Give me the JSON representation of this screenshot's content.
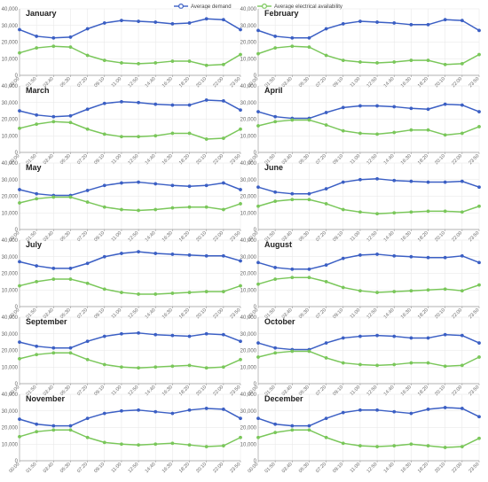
{
  "colors": {
    "demand": "#3b5fc4",
    "availability": "#7ac75a",
    "grid": "#e6e6e6",
    "axis": "#9a9a9a"
  },
  "legend": {
    "position": "top-center",
    "demand_label": "Average demand",
    "availability_label": "Average electrical availability"
  },
  "chart_data": [
    {
      "type": "line",
      "title": "January",
      "x": [
        "00:00",
        "01:50",
        "03:40",
        "05:30",
        "07:20",
        "09:10",
        "11:00",
        "12:50",
        "14:40",
        "16:30",
        "18:20",
        "20:10",
        "22:00",
        "23:50"
      ],
      "ylim": [
        0,
        40000
      ],
      "yticks": [
        "0",
        "10,000",
        "20,000",
        "30,000",
        "40,000"
      ],
      "series": [
        {
          "name": "Average demand",
          "values": [
            27500,
            23500,
            22500,
            23000,
            28000,
            31500,
            33000,
            32500,
            32000,
            31000,
            31500,
            34000,
            33500,
            27500
          ]
        },
        {
          "name": "Average electrical availability",
          "values": [
            13500,
            16500,
            17500,
            17000,
            12000,
            9000,
            7500,
            7000,
            7500,
            8500,
            8500,
            6000,
            6500,
            12500
          ]
        }
      ]
    },
    {
      "type": "line",
      "title": "February",
      "x": [
        "00:00",
        "01:50",
        "03:40",
        "05:30",
        "07:20",
        "09:10",
        "11:00",
        "12:50",
        "14:40",
        "16:30",
        "18:20",
        "20:10",
        "22:00",
        "23:50"
      ],
      "ylim": [
        0,
        40000
      ],
      "yticks": [
        "0",
        "10,000",
        "20,000",
        "30,000",
        "40,000"
      ],
      "series": [
        {
          "name": "Average demand",
          "values": [
            27000,
            23500,
            22500,
            22500,
            28000,
            31000,
            32500,
            32000,
            31500,
            30500,
            30500,
            33500,
            33000,
            27000
          ]
        },
        {
          "name": "Average electrical availability",
          "values": [
            13000,
            16500,
            17500,
            17000,
            12000,
            9000,
            8000,
            7500,
            8000,
            9000,
            9000,
            6500,
            7000,
            12500
          ]
        }
      ]
    },
    {
      "type": "line",
      "title": "March",
      "x": [
        "00:00",
        "01:50",
        "03:40",
        "05:30",
        "07:20",
        "09:10",
        "11:00",
        "12:50",
        "14:40",
        "16:30",
        "18:20",
        "20:10",
        "22:00",
        "23:50"
      ],
      "ylim": [
        0,
        40000
      ],
      "yticks": [
        "0",
        "10,000",
        "20,000",
        "30,000",
        "40,000"
      ],
      "series": [
        {
          "name": "Average demand",
          "values": [
            25000,
            22500,
            21500,
            22000,
            26000,
            29500,
            30500,
            30000,
            29000,
            28500,
            28500,
            31500,
            31000,
            25500
          ]
        },
        {
          "name": "Average electrical availability",
          "values": [
            14500,
            17000,
            18500,
            18000,
            14000,
            11000,
            9500,
            9500,
            10000,
            11500,
            11500,
            8000,
            8500,
            14000
          ]
        }
      ]
    },
    {
      "type": "line",
      "title": "April",
      "x": [
        "00:00",
        "01:50",
        "03:40",
        "05:30",
        "07:20",
        "09:10",
        "11:00",
        "12:50",
        "14:40",
        "16:30",
        "18:20",
        "20:10",
        "22:00",
        "23:50"
      ],
      "ylim": [
        0,
        40000
      ],
      "yticks": [
        "0",
        "10,000",
        "20,000",
        "30,000",
        "40,000"
      ],
      "series": [
        {
          "name": "Average demand",
          "values": [
            24500,
            21500,
            20500,
            20500,
            24000,
            27000,
            28000,
            28000,
            27500,
            26500,
            26000,
            29000,
            28500,
            24500
          ]
        },
        {
          "name": "Average electrical availability",
          "values": [
            16000,
            18500,
            19500,
            19500,
            16500,
            13000,
            11500,
            11000,
            12000,
            13500,
            13500,
            10500,
            11500,
            15500
          ]
        }
      ]
    },
    {
      "type": "line",
      "title": "May",
      "x": [
        "00:00",
        "01:50",
        "03:40",
        "05:30",
        "07:20",
        "09:10",
        "11:00",
        "12:50",
        "14:40",
        "16:30",
        "18:20",
        "20:10",
        "22:00",
        "23:50"
      ],
      "ylim": [
        0,
        40000
      ],
      "yticks": [
        "0",
        "10,000",
        "20,000",
        "30,000",
        "40,000"
      ],
      "series": [
        {
          "name": "Average demand",
          "values": [
            24000,
            21500,
            20500,
            20500,
            23500,
            26500,
            28000,
            28500,
            27500,
            26500,
            26000,
            26500,
            28000,
            24000
          ]
        },
        {
          "name": "Average electrical availability",
          "values": [
            16000,
            18500,
            19500,
            19500,
            16500,
            13500,
            12000,
            11500,
            12000,
            13000,
            13500,
            13500,
            12000,
            15500
          ]
        }
      ]
    },
    {
      "type": "line",
      "title": "June",
      "x": [
        "00:00",
        "01:50",
        "03:40",
        "05:30",
        "07:20",
        "09:10",
        "11:00",
        "12:50",
        "14:40",
        "16:30",
        "18:20",
        "20:10",
        "22:00",
        "23:50"
      ],
      "ylim": [
        0,
        40000
      ],
      "yticks": [
        "0",
        "10,000",
        "20,000",
        "30,000",
        "40,000"
      ],
      "series": [
        {
          "name": "Average demand",
          "values": [
            25500,
            22500,
            21500,
            21500,
            24500,
            28500,
            30000,
            30500,
            29500,
            29000,
            28500,
            28500,
            29000,
            25500
          ]
        },
        {
          "name": "Average electrical availability",
          "values": [
            14000,
            17000,
            18000,
            18000,
            15500,
            12000,
            10500,
            9500,
            10000,
            10500,
            11000,
            11000,
            10500,
            14000
          ]
        }
      ]
    },
    {
      "type": "line",
      "title": "July",
      "x": [
        "00:00",
        "01:50",
        "03:40",
        "05:30",
        "07:20",
        "09:10",
        "11:00",
        "12:50",
        "14:40",
        "16:30",
        "18:20",
        "20:10",
        "22:00",
        "23:50"
      ],
      "ylim": [
        0,
        40000
      ],
      "yticks": [
        "0",
        "10,000",
        "20,000",
        "30,000",
        "40,000"
      ],
      "series": [
        {
          "name": "Average demand",
          "values": [
            27000,
            24500,
            23000,
            23000,
            26000,
            30000,
            32000,
            33000,
            32000,
            31500,
            31000,
            30500,
            30500,
            27500
          ]
        },
        {
          "name": "Average electrical availability",
          "values": [
            12500,
            15000,
            16500,
            16500,
            14000,
            10500,
            8500,
            7500,
            7500,
            8000,
            8500,
            9000,
            9000,
            12500
          ]
        }
      ]
    },
    {
      "type": "line",
      "title": "August",
      "x": [
        "00:00",
        "01:50",
        "03:40",
        "05:30",
        "07:20",
        "09:10",
        "11:00",
        "12:50",
        "14:40",
        "16:30",
        "18:20",
        "20:10",
        "22:00",
        "23:50"
      ],
      "ylim": [
        0,
        40000
      ],
      "yticks": [
        "0",
        "10,000",
        "20,000",
        "30,000",
        "40,000"
      ],
      "series": [
        {
          "name": "Average demand",
          "values": [
            26500,
            23500,
            22500,
            22500,
            25000,
            29000,
            31000,
            31500,
            30500,
            30000,
            29500,
            29500,
            30500,
            26500
          ]
        },
        {
          "name": "Average electrical availability",
          "values": [
            13500,
            16500,
            17500,
            17500,
            15000,
            11500,
            9500,
            8500,
            9000,
            9500,
            10000,
            10500,
            9500,
            13000
          ]
        }
      ]
    },
    {
      "type": "line",
      "title": "September",
      "x": [
        "00:00",
        "01:50",
        "03:40",
        "05:30",
        "07:20",
        "09:10",
        "11:00",
        "12:50",
        "14:40",
        "16:30",
        "18:20",
        "20:10",
        "22:00",
        "23:50"
      ],
      "ylim": [
        0,
        40000
      ],
      "yticks": [
        "0",
        "10,000",
        "20,000",
        "30,000",
        "40,000"
      ],
      "series": [
        {
          "name": "Average demand",
          "values": [
            25000,
            22500,
            21500,
            21500,
            25500,
            28500,
            30000,
            30500,
            29500,
            29000,
            28500,
            30000,
            29500,
            25500
          ]
        },
        {
          "name": "Average electrical availability",
          "values": [
            15000,
            17500,
            18500,
            18500,
            14500,
            11500,
            10000,
            9500,
            10000,
            10500,
            11000,
            9500,
            10000,
            14500
          ]
        }
      ]
    },
    {
      "type": "line",
      "title": "October",
      "x": [
        "00:00",
        "01:50",
        "03:40",
        "05:30",
        "07:20",
        "09:10",
        "11:00",
        "12:50",
        "14:40",
        "16:30",
        "18:20",
        "20:10",
        "22:00",
        "23:50"
      ],
      "ylim": [
        0,
        40000
      ],
      "yticks": [
        "0",
        "10,000",
        "20,000",
        "30,000",
        "40,000"
      ],
      "series": [
        {
          "name": "Average demand",
          "values": [
            24500,
            21500,
            20500,
            20500,
            24500,
            27500,
            28500,
            29000,
            28500,
            27500,
            27500,
            29500,
            29000,
            24500
          ]
        },
        {
          "name": "Average electrical availability",
          "values": [
            16000,
            18500,
            19500,
            19500,
            15500,
            12500,
            11500,
            11000,
            11500,
            12500,
            12500,
            10500,
            11000,
            16000
          ]
        }
      ]
    },
    {
      "type": "line",
      "title": "November",
      "x": [
        "00:00",
        "01:50",
        "03:40",
        "05:30",
        "07:20",
        "09:10",
        "11:00",
        "12:50",
        "14:40",
        "16:30",
        "18:20",
        "20:10",
        "22:00",
        "23:50"
      ],
      "ylim": [
        0,
        40000
      ],
      "yticks": [
        "0",
        "10,000",
        "20,000",
        "30,000",
        "40,000"
      ],
      "series": [
        {
          "name": "Average demand",
          "values": [
            25000,
            22000,
            21000,
            21000,
            25500,
            28500,
            30000,
            30500,
            29500,
            28500,
            30500,
            31500,
            31000,
            25500
          ]
        },
        {
          "name": "Average electrical availability",
          "values": [
            14500,
            17500,
            18500,
            18500,
            14000,
            11000,
            10000,
            9500,
            10000,
            10500,
            9500,
            8500,
            9000,
            14000
          ]
        }
      ]
    },
    {
      "type": "line",
      "title": "December",
      "x": [
        "00:00",
        "01:50",
        "03:40",
        "05:30",
        "07:20",
        "09:10",
        "11:00",
        "12:50",
        "14:40",
        "16:30",
        "18:20",
        "20:10",
        "22:00",
        "23:50"
      ],
      "ylim": [
        0,
        40000
      ],
      "yticks": [
        "0",
        "10,000",
        "20,000",
        "30,000",
        "40,000"
      ],
      "series": [
        {
          "name": "Average demand",
          "values": [
            25500,
            22000,
            21000,
            21000,
            25500,
            29000,
            30500,
            30500,
            29500,
            28500,
            31000,
            32000,
            31500,
            26500
          ]
        },
        {
          "name": "Average electrical availability",
          "values": [
            14000,
            17000,
            18500,
            18500,
            14000,
            10500,
            9000,
            8500,
            9000,
            10000,
            9000,
            8000,
            8500,
            13500
          ]
        }
      ]
    }
  ]
}
